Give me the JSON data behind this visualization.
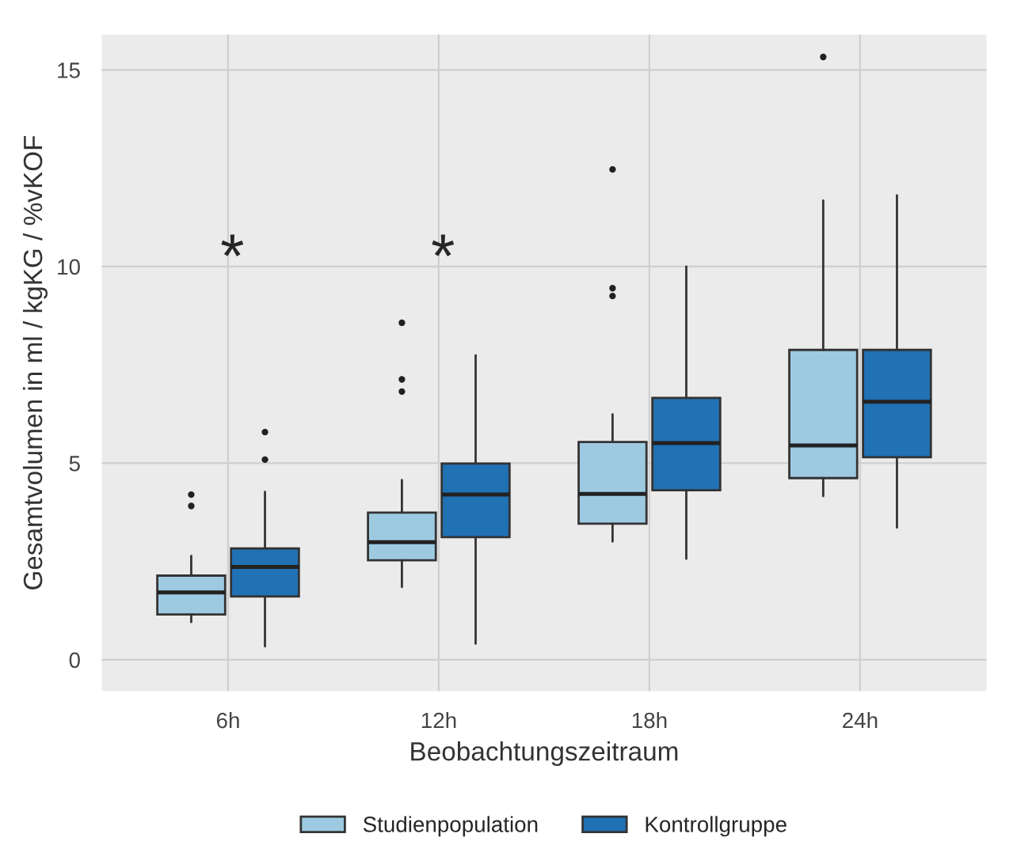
{
  "chart_data": {
    "type": "box",
    "xlabel": "Beobachtungszeitraum",
    "ylabel": "Gesamtvolumen in ml / kgKG / %vKOF",
    "categories": [
      "6h",
      "12h",
      "18h",
      "24h"
    ],
    "series": [
      {
        "name": "Studienpopulation",
        "color": "#9ecae1",
        "boxes": [
          {
            "low": 0.96,
            "q1": 1.15,
            "median": 1.71,
            "q3": 2.14,
            "high": 2.64,
            "outliers": [
              3.91,
              4.2
            ]
          },
          {
            "low": 1.85,
            "q1": 2.53,
            "median": 2.99,
            "q3": 3.74,
            "high": 4.57,
            "outliers": [
              6.82,
              7.13,
              8.57
            ]
          },
          {
            "low": 3.01,
            "q1": 3.46,
            "median": 4.22,
            "q3": 5.54,
            "high": 6.24,
            "outliers": [
              9.25,
              9.45,
              12.47
            ]
          },
          {
            "low": 4.16,
            "q1": 4.62,
            "median": 5.45,
            "q3": 7.88,
            "high": 11.68,
            "outliers": [
              15.33
            ]
          }
        ]
      },
      {
        "name": "Kontrollgruppe",
        "color": "#2171b5",
        "boxes": [
          {
            "low": 0.34,
            "q1": 1.61,
            "median": 2.36,
            "q3": 2.83,
            "high": 4.27,
            "outliers": [
              5.09,
              5.79
            ]
          },
          {
            "low": 0.41,
            "q1": 3.12,
            "median": 4.2,
            "q3": 4.99,
            "high": 7.74
          },
          {
            "low": 2.57,
            "q1": 4.31,
            "median": 5.51,
            "q3": 6.66,
            "high": 10.0
          },
          {
            "low": 3.36,
            "q1": 5.15,
            "median": 6.56,
            "q3": 7.88,
            "high": 11.81
          }
        ]
      }
    ],
    "annotations": [
      "*",
      "*"
    ],
    "ylim": [
      -0.8,
      15.9
    ],
    "yticks": [
      0,
      5,
      10,
      15
    ],
    "grid": true,
    "legend": "bottom"
  }
}
